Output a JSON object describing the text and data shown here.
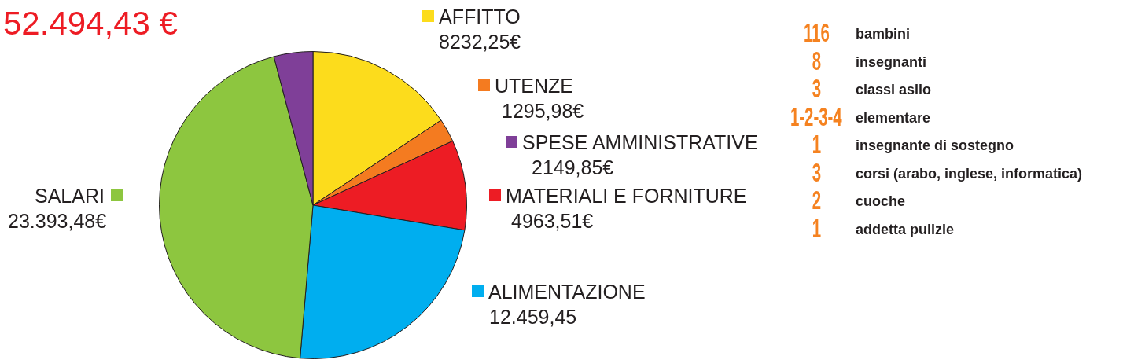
{
  "chart_data": [
    {
      "type": "pie",
      "title": "52.494,43 €",
      "categories": [
        "AFFITTO",
        "UTENZE",
        "MATERIALI E FORNITURE",
        "ALIMENTAZIONE",
        "SALARI",
        "SPESE AMMINISTRATIVE"
      ],
      "values": [
        8232.25,
        1295.98,
        4963.51,
        12459.45,
        23393.48,
        2149.85
      ],
      "value_labels": [
        "8232,25€",
        "1295,98€",
        "4963,51€",
        "12.459,45",
        "23.393,48€",
        "2149,85€"
      ],
      "legend": "right",
      "colors": [
        "#fcdc1c",
        "#f47b20",
        "#ed1c24",
        "#00aeef",
        "#8dc63f",
        "#7f3f98"
      ]
    },
    {
      "type": "other",
      "annotations": [
        "116",
        "bambini",
        "8",
        "insegnanti",
        "3",
        "classi asilo",
        "1-2-3-4",
        "elementare",
        "1",
        "insegnante di sostegno",
        "3",
        "corsi (arabo, inglese, informatica)",
        "2",
        "cuoche",
        "1",
        "addetta pulizie"
      ]
    }
  ]
}
